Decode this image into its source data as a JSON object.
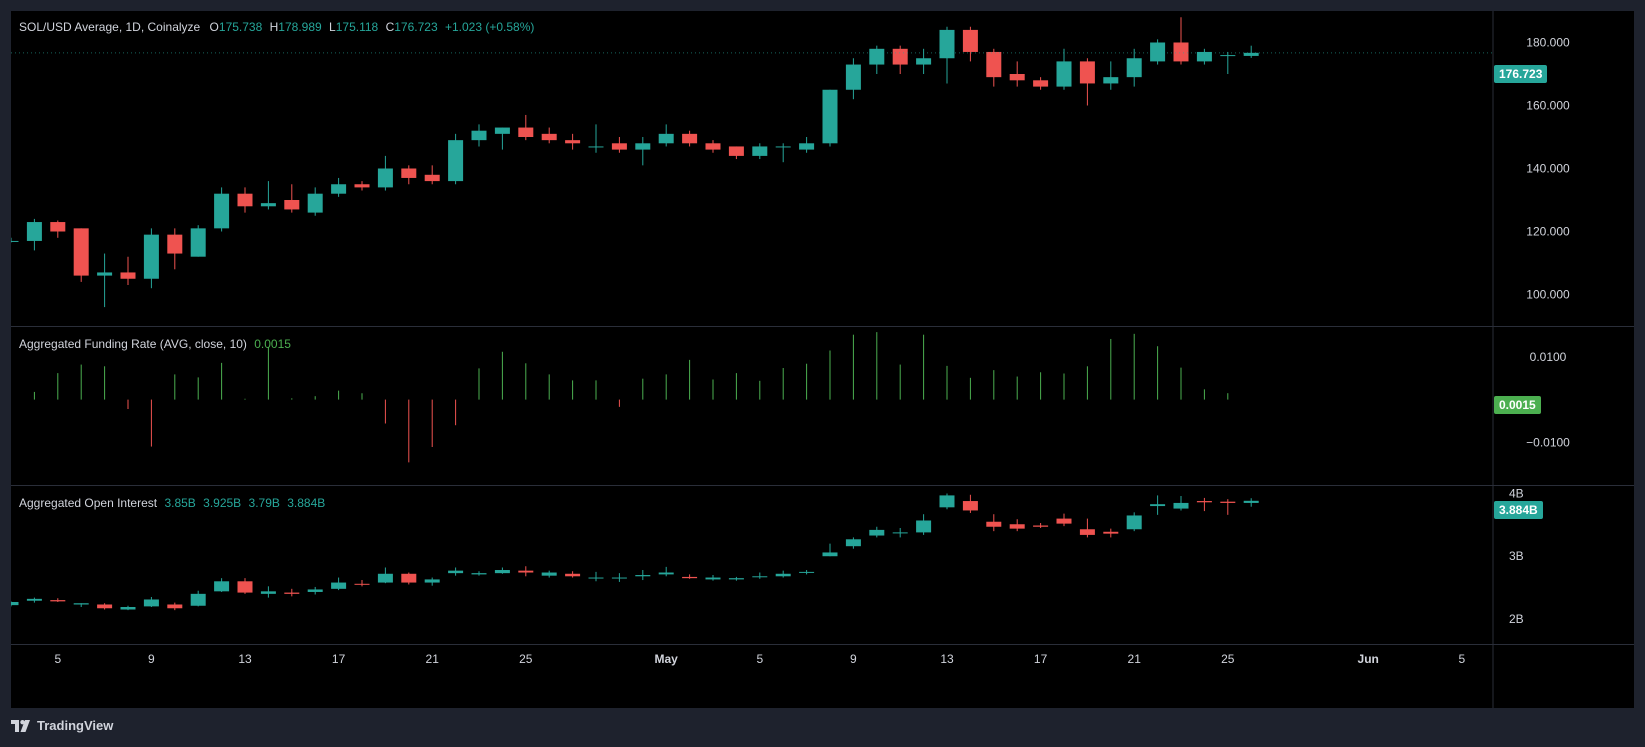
{
  "header": {
    "symbol": "SOL/USD Average, 1D, Coinalyze",
    "open_label": "O",
    "open": "175.738",
    "high_label": "H",
    "high": "178.989",
    "low_label": "L",
    "low": "175.118",
    "close_label": "C",
    "close": "176.723",
    "change": "+1.023 (+0.58%)"
  },
  "funding_header": {
    "title": "Aggregated Funding Rate (AVG, close, 10)",
    "value": "0.0015"
  },
  "oi_header": {
    "title": "Aggregated Open Interest",
    "o": "3.85B",
    "h": "3.925B",
    "l": "3.79B",
    "c": "3.884B"
  },
  "price_tags": {
    "price": "176.723",
    "funding": "0.0015",
    "oi": "3.884B"
  },
  "brand": {
    "name": "TradingView"
  },
  "colors": {
    "up": "#26a69a",
    "down": "#ef5350",
    "funding": "#4caf50",
    "background": "#000000",
    "frame": "#1e222d",
    "text": "#d1d4dc"
  },
  "chart_data": [
    {
      "type": "candlestick",
      "title": "SOL/USD Average, 1D, Coinalyze",
      "y_ticks": [
        "100.000",
        "120.000",
        "140.000",
        "160.000",
        "180.000"
      ],
      "ylim": [
        90,
        190
      ],
      "x_ticks": [
        "5",
        "9",
        "13",
        "17",
        "21",
        "25",
        "May",
        "5",
        "9",
        "13",
        "17",
        "21",
        "25",
        "Jun",
        "5"
      ],
      "candles": [
        {
          "o": 117,
          "h": 118,
          "l": 116.5,
          "c": 117
        },
        {
          "o": 117,
          "h": 124,
          "l": 114,
          "c": 123
        },
        {
          "o": 123,
          "h": 123.5,
          "l": 118,
          "c": 120
        },
        {
          "o": 121,
          "h": 121,
          "l": 104,
          "c": 106
        },
        {
          "o": 106,
          "h": 113,
          "l": 96,
          "c": 107
        },
        {
          "o": 107,
          "h": 112,
          "l": 103,
          "c": 105
        },
        {
          "o": 105,
          "h": 121,
          "l": 102,
          "c": 119
        },
        {
          "o": 119,
          "h": 121,
          "l": 108,
          "c": 113
        },
        {
          "o": 112,
          "h": 122,
          "l": 112,
          "c": 121
        },
        {
          "o": 121,
          "h": 134,
          "l": 120,
          "c": 132
        },
        {
          "o": 132,
          "h": 134,
          "l": 126,
          "c": 128
        },
        {
          "o": 128,
          "h": 136,
          "l": 127,
          "c": 129
        },
        {
          "o": 130,
          "h": 135,
          "l": 126,
          "c": 127
        },
        {
          "o": 126,
          "h": 134,
          "l": 125,
          "c": 132
        },
        {
          "o": 132,
          "h": 137,
          "l": 131,
          "c": 135
        },
        {
          "o": 135,
          "h": 136,
          "l": 133,
          "c": 134
        },
        {
          "o": 134,
          "h": 144,
          "l": 133,
          "c": 140
        },
        {
          "o": 140,
          "h": 141,
          "l": 135,
          "c": 137
        },
        {
          "o": 138,
          "h": 141,
          "l": 135,
          "c": 136
        },
        {
          "o": 136,
          "h": 151,
          "l": 135,
          "c": 149
        },
        {
          "o": 149,
          "h": 154,
          "l": 147,
          "c": 152
        },
        {
          "o": 151,
          "h": 153,
          "l": 146,
          "c": 153
        },
        {
          "o": 153,
          "h": 157,
          "l": 149,
          "c": 150
        },
        {
          "o": 151,
          "h": 153,
          "l": 148,
          "c": 149
        },
        {
          "o": 149,
          "h": 151,
          "l": 146,
          "c": 148
        },
        {
          "o": 147,
          "h": 154,
          "l": 145,
          "c": 147
        },
        {
          "o": 148,
          "h": 150,
          "l": 145,
          "c": 146
        },
        {
          "o": 146,
          "h": 150,
          "l": 141,
          "c": 148
        },
        {
          "o": 148,
          "h": 154,
          "l": 147,
          "c": 151
        },
        {
          "o": 151,
          "h": 152,
          "l": 147,
          "c": 148
        },
        {
          "o": 148,
          "h": 149,
          "l": 145,
          "c": 146
        },
        {
          "o": 147,
          "h": 147,
          "l": 143,
          "c": 144
        },
        {
          "o": 144,
          "h": 148,
          "l": 143,
          "c": 147
        },
        {
          "o": 147,
          "h": 148,
          "l": 142,
          "c": 147
        },
        {
          "o": 146,
          "h": 150,
          "l": 145,
          "c": 148
        },
        {
          "o": 148,
          "h": 165,
          "l": 147,
          "c": 165
        },
        {
          "o": 165,
          "h": 175,
          "l": 162,
          "c": 173
        },
        {
          "o": 173,
          "h": 179,
          "l": 170,
          "c": 178
        },
        {
          "o": 178,
          "h": 179,
          "l": 170,
          "c": 173
        },
        {
          "o": 173,
          "h": 178,
          "l": 170,
          "c": 175
        },
        {
          "o": 175,
          "h": 185,
          "l": 167,
          "c": 184
        },
        {
          "o": 184,
          "h": 185,
          "l": 174,
          "c": 177
        },
        {
          "o": 177,
          "h": 178,
          "l": 166,
          "c": 169
        },
        {
          "o": 170,
          "h": 174,
          "l": 166,
          "c": 168
        },
        {
          "o": 168,
          "h": 169,
          "l": 165,
          "c": 166
        },
        {
          "o": 166,
          "h": 178,
          "l": 165,
          "c": 174
        },
        {
          "o": 174,
          "h": 175,
          "l": 160,
          "c": 167
        },
        {
          "o": 167,
          "h": 174,
          "l": 165,
          "c": 169
        },
        {
          "o": 169,
          "h": 178,
          "l": 166,
          "c": 175
        },
        {
          "o": 174,
          "h": 181,
          "l": 173,
          "c": 180
        },
        {
          "o": 180,
          "h": 188,
          "l": 173,
          "c": 174
        },
        {
          "o": 174,
          "h": 178,
          "l": 173,
          "c": 177
        },
        {
          "o": 176,
          "h": 177,
          "l": 170,
          "c": 176
        },
        {
          "o": 175.738,
          "h": 178.989,
          "l": 175.118,
          "c": 176.723
        }
      ]
    },
    {
      "type": "bar",
      "title": "Aggregated Funding Rate (AVG, close, 10)",
      "y_ticks": [
        "0.0100",
        "-0.0100"
      ],
      "ylim": [
        -0.02,
        0.017
      ],
      "values": [
        0.0018,
        0.0062,
        0.0082,
        0.0078,
        -0.0022,
        -0.011,
        0.0059,
        0.0052,
        0.0086,
        0.0002,
        0.0123,
        0.0003,
        0.0008,
        0.0021,
        0.0015,
        -0.0056,
        -0.0147,
        -0.0111,
        -0.006,
        0.0073,
        0.0112,
        0.0085,
        0.0059,
        0.0045,
        0.0045,
        -0.0017,
        0.0049,
        0.0059,
        0.0093,
        0.0047,
        0.0062,
        0.0044,
        0.0074,
        0.0084,
        0.0115,
        0.0152,
        0.0158,
        0.0082,
        0.0152,
        0.0079,
        0.0051,
        0.0069,
        0.0054,
        0.0064,
        0.0061,
        0.0078,
        0.0142,
        0.0154,
        0.0125,
        0.0075,
        0.0024,
        0.0015
      ]
    },
    {
      "type": "candlestick",
      "title": "Aggregated Open Interest",
      "y_ticks": [
        "2B",
        "3B",
        "4B"
      ],
      "ylim": [
        1.6,
        4.12
      ],
      "candles": [
        {
          "o": 2.22,
          "h": 2.28,
          "l": 2.2,
          "c": 2.27
        },
        {
          "o": 2.29,
          "h": 2.34,
          "l": 2.26,
          "c": 2.32
        },
        {
          "o": 2.3,
          "h": 2.33,
          "l": 2.27,
          "c": 2.28
        },
        {
          "o": 2.23,
          "h": 2.25,
          "l": 2.19,
          "c": 2.25
        },
        {
          "o": 2.23,
          "h": 2.25,
          "l": 2.15,
          "c": 2.17
        },
        {
          "o": 2.15,
          "h": 2.21,
          "l": 2.14,
          "c": 2.19
        },
        {
          "o": 2.2,
          "h": 2.35,
          "l": 2.19,
          "c": 2.31
        },
        {
          "o": 2.23,
          "h": 2.26,
          "l": 2.14,
          "c": 2.17
        },
        {
          "o": 2.21,
          "h": 2.45,
          "l": 2.2,
          "c": 2.4
        },
        {
          "o": 2.44,
          "h": 2.65,
          "l": 2.43,
          "c": 2.6
        },
        {
          "o": 2.6,
          "h": 2.65,
          "l": 2.4,
          "c": 2.42
        },
        {
          "o": 2.4,
          "h": 2.52,
          "l": 2.34,
          "c": 2.44
        },
        {
          "o": 2.42,
          "h": 2.48,
          "l": 2.36,
          "c": 2.4
        },
        {
          "o": 2.43,
          "h": 2.51,
          "l": 2.39,
          "c": 2.47
        },
        {
          "o": 2.48,
          "h": 2.66,
          "l": 2.46,
          "c": 2.58
        },
        {
          "o": 2.56,
          "h": 2.62,
          "l": 2.52,
          "c": 2.55
        },
        {
          "o": 2.58,
          "h": 2.82,
          "l": 2.57,
          "c": 2.72
        },
        {
          "o": 2.72,
          "h": 2.74,
          "l": 2.55,
          "c": 2.58
        },
        {
          "o": 2.58,
          "h": 2.66,
          "l": 2.53,
          "c": 2.63
        },
        {
          "o": 2.73,
          "h": 2.82,
          "l": 2.69,
          "c": 2.77
        },
        {
          "o": 2.71,
          "h": 2.76,
          "l": 2.69,
          "c": 2.73
        },
        {
          "o": 2.73,
          "h": 2.82,
          "l": 2.72,
          "c": 2.78
        },
        {
          "o": 2.77,
          "h": 2.84,
          "l": 2.68,
          "c": 2.74
        },
        {
          "o": 2.69,
          "h": 2.77,
          "l": 2.66,
          "c": 2.74
        },
        {
          "o": 2.72,
          "h": 2.76,
          "l": 2.66,
          "c": 2.68
        },
        {
          "o": 2.66,
          "h": 2.75,
          "l": 2.6,
          "c": 2.66
        },
        {
          "o": 2.65,
          "h": 2.73,
          "l": 2.59,
          "c": 2.66
        },
        {
          "o": 2.68,
          "h": 2.78,
          "l": 2.62,
          "c": 2.7
        },
        {
          "o": 2.71,
          "h": 2.83,
          "l": 2.68,
          "c": 2.74
        },
        {
          "o": 2.67,
          "h": 2.71,
          "l": 2.64,
          "c": 2.65
        },
        {
          "o": 2.63,
          "h": 2.7,
          "l": 2.61,
          "c": 2.66
        },
        {
          "o": 2.63,
          "h": 2.67,
          "l": 2.61,
          "c": 2.65
        },
        {
          "o": 2.67,
          "h": 2.74,
          "l": 2.64,
          "c": 2.68
        },
        {
          "o": 2.68,
          "h": 2.77,
          "l": 2.66,
          "c": 2.72
        },
        {
          "o": 2.74,
          "h": 2.78,
          "l": 2.71,
          "c": 2.75
        },
        {
          "o": 3.0,
          "h": 3.2,
          "l": 3.0,
          "c": 3.06
        },
        {
          "o": 3.16,
          "h": 3.3,
          "l": 3.12,
          "c": 3.27
        },
        {
          "o": 3.33,
          "h": 3.47,
          "l": 3.3,
          "c": 3.42
        },
        {
          "o": 3.37,
          "h": 3.45,
          "l": 3.3,
          "c": 3.38
        },
        {
          "o": 3.38,
          "h": 3.67,
          "l": 3.34,
          "c": 3.57
        },
        {
          "o": 3.78,
          "h": 4.0,
          "l": 3.75,
          "c": 3.97
        },
        {
          "o": 3.88,
          "h": 3.98,
          "l": 3.69,
          "c": 3.73
        },
        {
          "o": 3.55,
          "h": 3.67,
          "l": 3.4,
          "c": 3.47
        },
        {
          "o": 3.51,
          "h": 3.59,
          "l": 3.4,
          "c": 3.44
        },
        {
          "o": 3.49,
          "h": 3.53,
          "l": 3.45,
          "c": 3.47
        },
        {
          "o": 3.6,
          "h": 3.68,
          "l": 3.48,
          "c": 3.52
        },
        {
          "o": 3.43,
          "h": 3.6,
          "l": 3.3,
          "c": 3.34
        },
        {
          "o": 3.39,
          "h": 3.44,
          "l": 3.3,
          "c": 3.36
        },
        {
          "o": 3.43,
          "h": 3.7,
          "l": 3.4,
          "c": 3.65
        },
        {
          "o": 3.8,
          "h": 3.97,
          "l": 3.66,
          "c": 3.83
        },
        {
          "o": 3.76,
          "h": 3.96,
          "l": 3.73,
          "c": 3.85
        },
        {
          "o": 3.88,
          "h": 3.93,
          "l": 3.72,
          "c": 3.86
        },
        {
          "o": 3.87,
          "h": 3.91,
          "l": 3.66,
          "c": 3.85
        },
        {
          "o": 3.85,
          "h": 3.925,
          "l": 3.79,
          "c": 3.884
        }
      ]
    }
  ]
}
